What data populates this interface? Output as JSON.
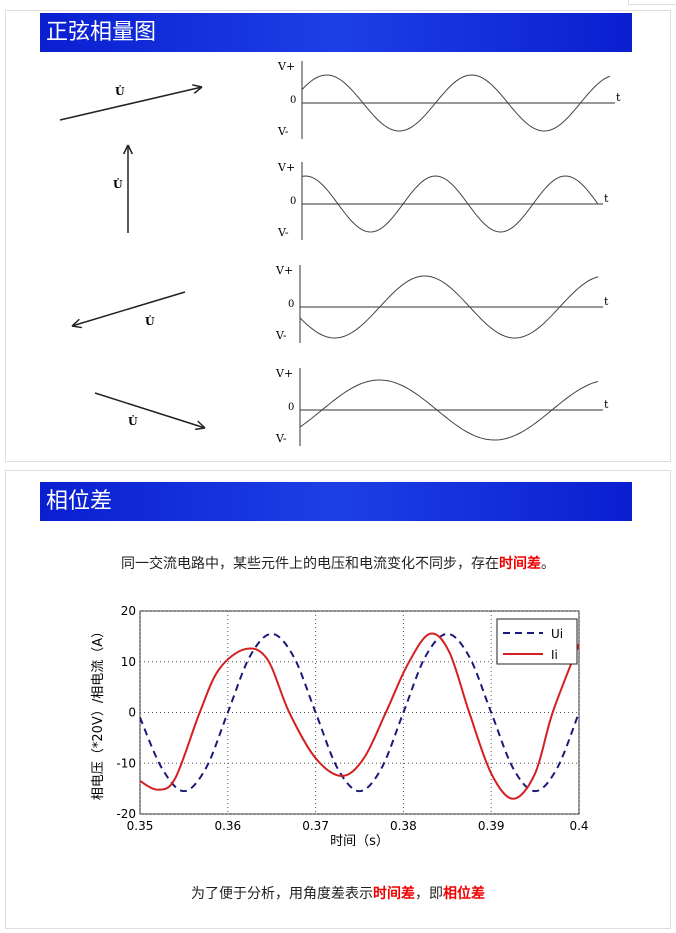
{
  "section1": {
    "title": "正弦相量图",
    "phasor_label": "U̇",
    "v_plus": "V+",
    "v_minus": "V-",
    "zero": "0",
    "t": "t"
  },
  "section2": {
    "title": "相位差",
    "line1": {
      "pre": "同一交流电路中，某些元件上的电压和电流变化不同步，存在",
      "hl": "时间差",
      "post": "。"
    },
    "line2": {
      "pre": "为了便于分析，用角度差表示",
      "hl1": "时间差",
      "mid": "，即",
      "hl2": "相位差"
    }
  },
  "colors": {
    "header": "#0a1fd0",
    "ui": "#1a1a7a",
    "ii": "#d42020",
    "highlight": "#e00000"
  },
  "chart_data": {
    "type": "line",
    "xlabel": "时间（s）",
    "ylabel": "相电压（*20V）/相电流（A）",
    "xlim": [
      0.35,
      0.4
    ],
    "ylim": [
      -20,
      20
    ],
    "grid": true,
    "legend": "top-right",
    "xticks": [
      "0.35",
      "0.36",
      "0.37",
      "0.38",
      "0.39",
      "0.4"
    ],
    "yticks": [
      "20",
      "10",
      "0",
      "-10",
      "-20"
    ],
    "series": [
      {
        "name": "Ui",
        "style": "dashed",
        "x": [
          0.35,
          0.3525,
          0.355,
          0.3575,
          0.36,
          0.3625,
          0.365,
          0.3675,
          0.37,
          0.3725,
          0.375,
          0.3775,
          0.38,
          0.3825,
          0.385,
          0.3875,
          0.39,
          0.3925,
          0.395,
          0.3975,
          0.4
        ],
        "y": [
          -1,
          -11,
          -15.5,
          -11,
          0,
          11,
          15.5,
          11,
          0,
          -11,
          -15.5,
          -11,
          0,
          11,
          15.5,
          11,
          0,
          -11,
          -15.5,
          -11,
          0
        ]
      },
      {
        "name": "Ii",
        "style": "solid",
        "x": [
          0.35,
          0.352,
          0.354,
          0.3568,
          0.359,
          0.362,
          0.3645,
          0.367,
          0.37,
          0.373,
          0.3755,
          0.378,
          0.3805,
          0.383,
          0.3852,
          0.3875,
          0.39,
          0.3925,
          0.395,
          0.397,
          0.4
        ],
        "y": [
          -13.5,
          -15.2,
          -13,
          0,
          8.5,
          12.5,
          10.5,
          0,
          -9,
          -12.5,
          -9,
          0,
          9.5,
          15.5,
          12,
          0,
          -12,
          -17,
          -12,
          0,
          13.5
        ]
      }
    ]
  }
}
